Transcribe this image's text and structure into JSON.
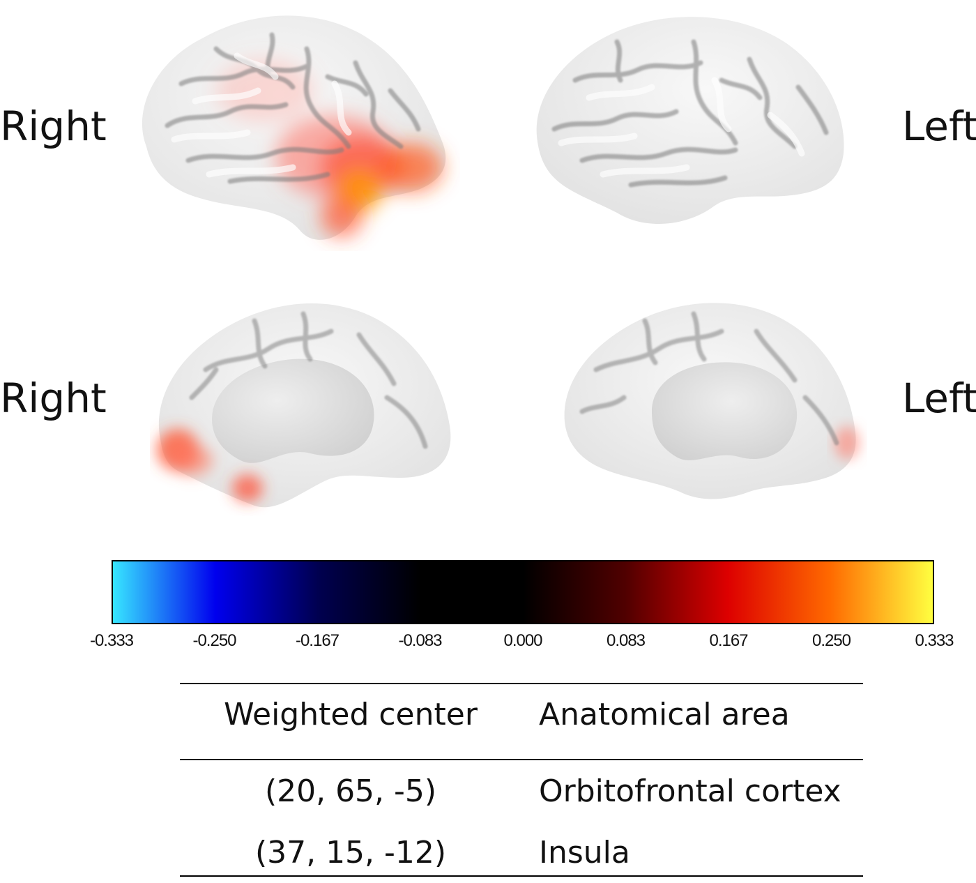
{
  "labels": {
    "top_right": "Right",
    "top_left": "Left",
    "bottom_right": "Right",
    "bottom_left": "Left"
  },
  "colorbar": {
    "colors": [
      "#37e6ff",
      "#0000ee",
      "#000050",
      "#000000",
      "#000000",
      "#500000",
      "#dd0000",
      "#ff6a00",
      "#ffff40"
    ],
    "ticks": [
      "-0.333",
      "-0.250",
      "-0.167",
      "-0.083",
      "0.000",
      "0.083",
      "0.167",
      "0.250",
      "0.333"
    ]
  },
  "table": {
    "headers": [
      "Weighted center",
      "Anatomical area"
    ],
    "rows": [
      [
        "(20, 65, -5)",
        "Orbitofrontal cortex"
      ],
      [
        "(37, 15, -12)",
        "Insula"
      ]
    ]
  }
}
